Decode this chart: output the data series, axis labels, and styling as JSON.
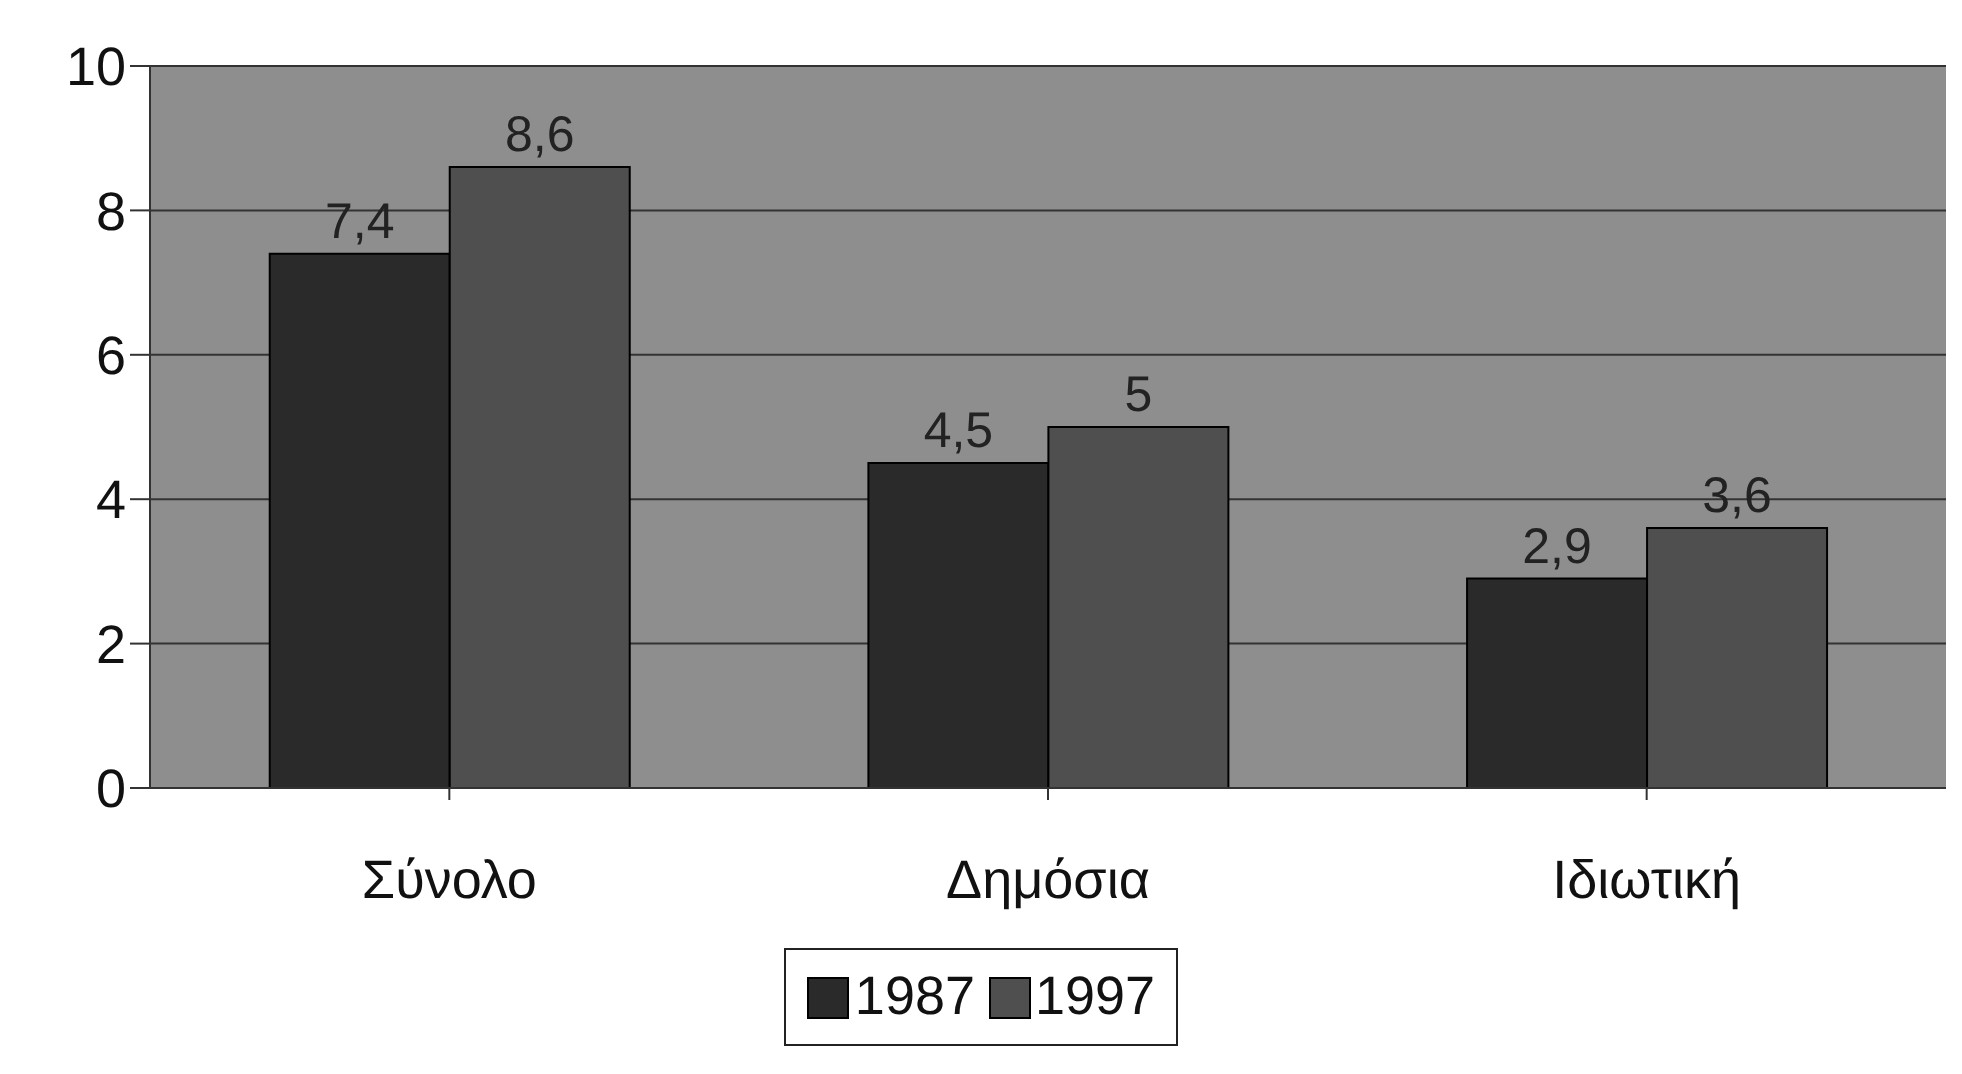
{
  "chart_data": {
    "type": "bar",
    "categories": [
      "Σύνολο",
      "Δημόσια",
      "Ιδιωτική"
    ],
    "series": [
      {
        "name": "1987",
        "color": "#2a2a2a",
        "values": [
          7.4,
          4.5,
          2.9
        ],
        "value_labels": [
          "7,4",
          "4,5",
          "2,9"
        ]
      },
      {
        "name": "1997",
        "color": "#4f4f4f",
        "values": [
          8.6,
          5,
          3.6
        ],
        "value_labels": [
          "8,6",
          "5",
          "3,6"
        ]
      }
    ],
    "ylim": [
      0,
      10
    ],
    "yticks": [
      0,
      2,
      4,
      6,
      8,
      10
    ],
    "grid": "y",
    "legend": "bottom"
  }
}
